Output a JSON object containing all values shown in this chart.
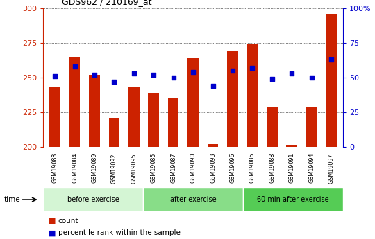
{
  "title": "GDS962 / 210169_at",
  "samples": [
    "GSM19083",
    "GSM19084",
    "GSM19089",
    "GSM19092",
    "GSM19095",
    "GSM19085",
    "GSM19087",
    "GSM19090",
    "GSM19093",
    "GSM19096",
    "GSM19086",
    "GSM19088",
    "GSM19091",
    "GSM19094",
    "GSM19097"
  ],
  "counts": [
    243,
    265,
    252,
    221,
    243,
    239,
    235,
    264,
    202,
    269,
    274,
    229,
    201,
    229,
    296
  ],
  "percentile_ranks": [
    51,
    58,
    52,
    47,
    53,
    52,
    50,
    54,
    44,
    55,
    57,
    49,
    53,
    50,
    63
  ],
  "groups": [
    {
      "label": "before exercise",
      "start": 0,
      "end": 5
    },
    {
      "label": "after exercise",
      "start": 5,
      "end": 10
    },
    {
      "label": "60 min after exercise",
      "start": 10,
      "end": 15
    }
  ],
  "group_colors": [
    "#d4f5d4",
    "#88dd88",
    "#55cc55"
  ],
  "ylim_left": [
    200,
    300
  ],
  "ylim_right": [
    0,
    100
  ],
  "yticks_left": [
    200,
    225,
    250,
    275,
    300
  ],
  "yticks_right": [
    0,
    25,
    50,
    75,
    100
  ],
  "bar_color": "#cc2200",
  "marker_color": "#0000cc",
  "bar_width": 0.55,
  "sample_bg_color": "#cccccc",
  "plot_bg": "#ffffff",
  "fig_bg": "#ffffff",
  "left_tick_color": "#cc2200",
  "right_tick_color": "#0000cc",
  "legend_count_label": "count",
  "legend_pct_label": "percentile rank within the sample"
}
